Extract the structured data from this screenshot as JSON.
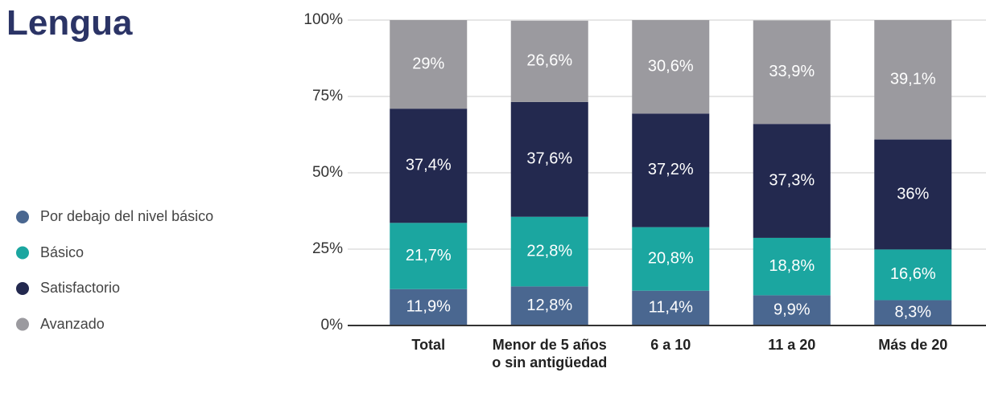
{
  "chart_data": {
    "type": "stacked_bar",
    "title": "Lengua",
    "categories": [
      "Total",
      "Menor de 5 años o sin antigüedad",
      "6 a 10",
      "11 a 20",
      "Más de 20"
    ],
    "series": [
      {
        "name": "Por debajo del nivel básico",
        "color": "#4a6790",
        "values": [
          11.9,
          12.8,
          11.4,
          9.9,
          8.3
        ],
        "value_labels": [
          "11,9%",
          "12,8%",
          "11,4%",
          "9,9%",
          "8,3%"
        ]
      },
      {
        "name": "Básico",
        "color": "#1ba6a0",
        "values": [
          21.7,
          22.8,
          20.8,
          18.8,
          16.6
        ],
        "value_labels": [
          "21,7%",
          "22,8%",
          "20,8%",
          "18,8%",
          "16,6%"
        ]
      },
      {
        "name": "Satisfactorio",
        "color": "#23294f",
        "values": [
          37.4,
          37.6,
          37.2,
          37.3,
          36
        ],
        "value_labels": [
          "37,4%",
          "37,6%",
          "37,2%",
          "37,3%",
          "36%"
        ]
      },
      {
        "name": "Avanzado",
        "color": "#9b9a9f",
        "values": [
          29,
          26.6,
          30.6,
          33.9,
          39.1
        ],
        "value_labels": [
          "29%",
          "26,6%",
          "30,6%",
          "33,9%",
          "39,1%"
        ]
      }
    ],
    "ylim": [
      0,
      100
    ],
    "yticks": [
      {
        "value": 0,
        "label": "0%"
      },
      {
        "value": 25,
        "label": "25%"
      },
      {
        "value": 50,
        "label": "50%"
      },
      {
        "value": 75,
        "label": "75%"
      },
      {
        "value": 100,
        "label": "100%"
      }
    ],
    "grid": true,
    "legend": "left"
  }
}
